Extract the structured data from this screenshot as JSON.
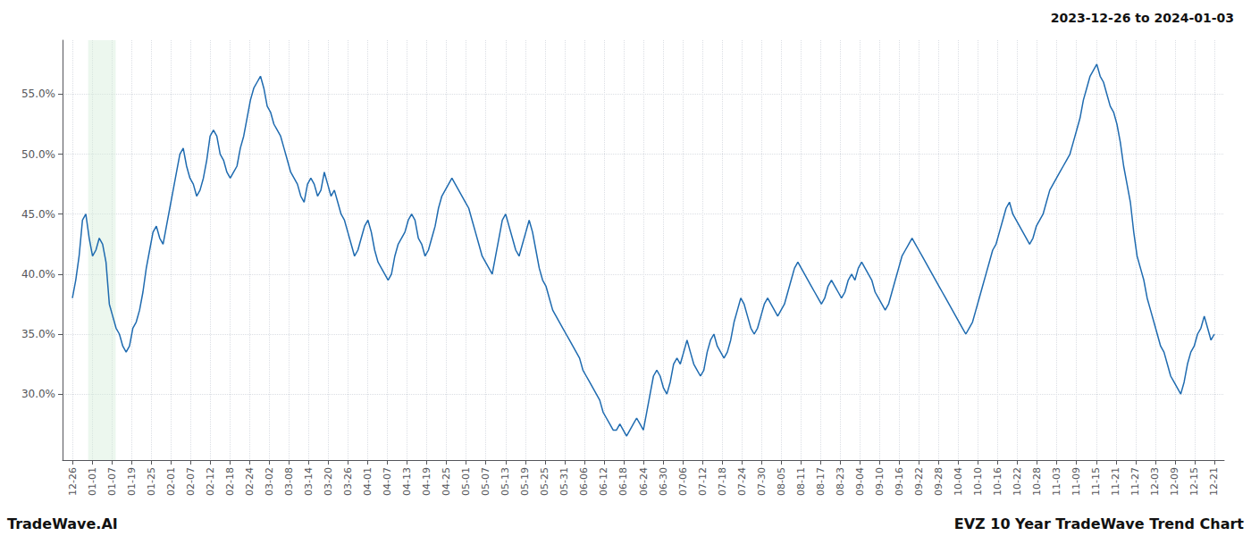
{
  "chart_data": {
    "type": "line",
    "title": "2023-12-26 to 2024-01-03",
    "annotations": [
      "TradeWave.AI",
      "EVZ 10 Year TradeWave Trend Chart"
    ],
    "color": "#1f6bb0",
    "grid": true,
    "shading": {
      "from": 0.8,
      "to": 2.2,
      "color": "#d4edda"
    },
    "xlim": [
      -0.5,
      58.5
    ],
    "xticks": [
      {
        "value": 0,
        "label": "12-26"
      },
      {
        "value": 1,
        "label": "01-01"
      },
      {
        "value": 2,
        "label": "01-07"
      },
      {
        "value": 3,
        "label": "01-19"
      },
      {
        "value": 4,
        "label": "01-25"
      },
      {
        "value": 5,
        "label": "02-01"
      },
      {
        "value": 6,
        "label": "02-07"
      },
      {
        "value": 7,
        "label": "02-12"
      },
      {
        "value": 8,
        "label": "02-18"
      },
      {
        "value": 9,
        "label": "02-24"
      },
      {
        "value": 10,
        "label": "03-02"
      },
      {
        "value": 11,
        "label": "03-08"
      },
      {
        "value": 12,
        "label": "03-14"
      },
      {
        "value": 13,
        "label": "03-20"
      },
      {
        "value": 14,
        "label": "03-26"
      },
      {
        "value": 15,
        "label": "04-01"
      },
      {
        "value": 16,
        "label": "04-07"
      },
      {
        "value": 17,
        "label": "04-13"
      },
      {
        "value": 18,
        "label": "04-19"
      },
      {
        "value": 19,
        "label": "04-25"
      },
      {
        "value": 20,
        "label": "05-01"
      },
      {
        "value": 21,
        "label": "05-07"
      },
      {
        "value": 22,
        "label": "05-13"
      },
      {
        "value": 23,
        "label": "05-19"
      },
      {
        "value": 24,
        "label": "05-25"
      },
      {
        "value": 25,
        "label": "05-31"
      },
      {
        "value": 26,
        "label": "06-06"
      },
      {
        "value": 27,
        "label": "06-12"
      },
      {
        "value": 28,
        "label": "06-18"
      },
      {
        "value": 29,
        "label": "06-24"
      },
      {
        "value": 30,
        "label": "06-30"
      },
      {
        "value": 31,
        "label": "07-06"
      },
      {
        "value": 32,
        "label": "07-12"
      },
      {
        "value": 33,
        "label": "07-18"
      },
      {
        "value": 34,
        "label": "07-24"
      },
      {
        "value": 35,
        "label": "07-30"
      },
      {
        "value": 36,
        "label": "08-05"
      },
      {
        "value": 37,
        "label": "08-11"
      },
      {
        "value": 38,
        "label": "08-17"
      },
      {
        "value": 39,
        "label": "08-23"
      },
      {
        "value": 40,
        "label": "09-04"
      },
      {
        "value": 41,
        "label": "09-10"
      },
      {
        "value": 42,
        "label": "09-16"
      },
      {
        "value": 43,
        "label": "09-22"
      },
      {
        "value": 44,
        "label": "09-28"
      },
      {
        "value": 45,
        "label": "10-04"
      },
      {
        "value": 46,
        "label": "10-10"
      },
      {
        "value": 47,
        "label": "10-16"
      },
      {
        "value": 48,
        "label": "10-22"
      },
      {
        "value": 49,
        "label": "10-28"
      },
      {
        "value": 50,
        "label": "11-03"
      },
      {
        "value": 51,
        "label": "11-09"
      },
      {
        "value": 52,
        "label": "11-15"
      },
      {
        "value": 53,
        "label": "11-21"
      },
      {
        "value": 54,
        "label": "11-27"
      },
      {
        "value": 55,
        "label": "12-03"
      },
      {
        "value": 56,
        "label": "12-09"
      },
      {
        "value": 57,
        "label": "12-15"
      },
      {
        "value": 58,
        "label": "12-21"
      }
    ],
    "ylim": [
      24.5,
      59.5
    ],
    "yticks": [
      {
        "value": 30.0,
        "label": "30.0%"
      },
      {
        "value": 35.0,
        "label": "35.0%"
      },
      {
        "value": 40.0,
        "label": "40.0%"
      },
      {
        "value": 45.0,
        "label": "45.0%"
      },
      {
        "value": 50.0,
        "label": "50.0%"
      },
      {
        "value": 55.0,
        "label": "55.0%"
      }
    ],
    "x": [
      0,
      0.1706,
      0.3412,
      0.5118,
      0.6824,
      0.8529,
      1.0235,
      1.1941,
      1.3647,
      1.5353,
      1.7059,
      1.8765,
      2.0471,
      2.2176,
      2.3882,
      2.5588,
      2.7294,
      2.9,
      3.0706,
      3.2412,
      3.4118,
      3.5824,
      3.7529,
      3.9235,
      4.0941,
      4.2647,
      4.4353,
      4.6059,
      4.7765,
      4.9471,
      5.1176,
      5.2882,
      5.4588,
      5.6294,
      5.8,
      5.9706,
      6.1412,
      6.3118,
      6.4824,
      6.6529,
      6.8235,
      6.9941,
      7.1647,
      7.3353,
      7.5059,
      7.6765,
      7.8471,
      8.0176,
      8.1882,
      8.3588,
      8.5294,
      8.7,
      8.8706,
      9.0412,
      9.2118,
      9.3824,
      9.5529,
      9.7235,
      9.8941,
      10.0647,
      10.2353,
      10.4059,
      10.5765,
      10.7471,
      10.9176,
      11.0882,
      11.2588,
      11.4294,
      11.6,
      11.7706,
      11.9412,
      12.1118,
      12.2824,
      12.4529,
      12.6235,
      12.7941,
      12.9647,
      13.1353,
      13.3059,
      13.4765,
      13.6471,
      13.8176,
      13.9882,
      14.1588,
      14.3294,
      14.5,
      14.6706,
      14.8412,
      15.0118,
      15.1824,
      15.3529,
      15.5235,
      15.6941,
      15.8647,
      16.0353,
      16.2059,
      16.3765,
      16.5471,
      16.7176,
      16.8882,
      17.0588,
      17.2294,
      17.4,
      17.5706,
      17.7412,
      17.9118,
      18.0824,
      18.2529,
      18.4235,
      18.5941,
      18.7647,
      18.9353,
      19.1059,
      19.2765,
      19.4471,
      19.6176,
      19.7882,
      19.9588,
      20.1294,
      20.3,
      20.4706,
      20.6412,
      20.8118,
      20.9824,
      21.1529,
      21.3235,
      21.4941,
      21.6647,
      21.8353,
      22.0059,
      22.1765,
      22.3471,
      22.5176,
      22.6882,
      22.8588,
      23.0294,
      23.2,
      23.3706,
      23.5412,
      23.7118,
      23.8824,
      24.0529,
      24.2235,
      24.3941,
      24.5647,
      24.7353,
      24.9059,
      25.0765,
      25.2471,
      25.4176,
      25.5882,
      25.7588,
      25.9294,
      26.1,
      26.2706,
      26.4412,
      26.6118,
      26.7824,
      26.9529,
      27.1235,
      27.2941,
      27.4647,
      27.6353,
      27.8059,
      27.9765,
      28.1471,
      28.3176,
      28.4882,
      28.6588,
      28.8294,
      29,
      29.1706,
      29.3412,
      29.5118,
      29.6824,
      29.8529,
      30.0235,
      30.1941,
      30.3647,
      30.5353,
      30.7059,
      30.8765,
      31.0471,
      31.2176,
      31.3882,
      31.5588,
      31.7294,
      31.9,
      32.0706,
      32.2412,
      32.4118,
      32.5824,
      32.7529,
      32.9235,
      33.0941,
      33.2647,
      33.4353,
      33.6059,
      33.7765,
      33.9471,
      34.1176,
      34.2882,
      34.4588,
      34.6294,
      34.8,
      34.9706,
      35.1412,
      35.3118,
      35.4824,
      35.6529,
      35.8235,
      35.9941,
      36.1647,
      36.3353,
      36.5059,
      36.6765,
      36.8471,
      37.0176,
      37.1882,
      37.3588,
      37.5294,
      37.7,
      37.8706,
      38.0412,
      38.2118,
      38.3824,
      38.5529,
      38.7235,
      38.8941,
      39.0647,
      39.2353,
      39.4059,
      39.5765,
      39.7471,
      39.9176,
      40.0882,
      40.2588,
      40.4294,
      40.6,
      40.7706,
      40.9412,
      41.1118,
      41.2824,
      41.4529,
      41.6235,
      41.7941,
      41.9647,
      42.1353,
      42.3059,
      42.4765,
      42.6471,
      42.8176,
      42.9882,
      43.1588,
      43.3294,
      43.5,
      43.6706,
      43.8412,
      44.0118,
      44.1824,
      44.3529,
      44.5235,
      44.6941,
      44.8647,
      45.0353,
      45.2059,
      45.3765,
      45.5471,
      45.7176,
      45.8882,
      46.0588,
      46.2294,
      46.4,
      46.5706,
      46.7412,
      46.9118,
      47.0824,
      47.2529,
      47.4235,
      47.5941,
      47.7647,
      47.9353,
      48.1059,
      48.2765,
      48.4471,
      48.6176,
      48.7882,
      48.9588,
      49.1294,
      49.3,
      49.4706,
      49.6412,
      49.8118,
      49.9824,
      50.1529,
      50.3235,
      50.4941,
      50.6647,
      50.8353,
      51.0059,
      51.1765,
      51.3471,
      51.5176,
      51.6882,
      51.8588,
      52.0294,
      52.2,
      52.3706,
      52.5412,
      52.7118,
      52.8824,
      53.0529,
      53.2235,
      53.3941,
      53.5647,
      53.7353,
      53.9059,
      54.0765,
      54.2471,
      54.4176,
      54.5882,
      54.7588,
      54.9294,
      55.1,
      55.2706,
      55.4412,
      55.6118,
      55.7824,
      55.9529,
      56.1235,
      56.2941,
      56.4647,
      56.6353,
      56.8059,
      56.9765,
      57.1471,
      57.3176,
      57.4882,
      57.6588,
      57.8294,
      58
    ],
    "values": [
      38.0,
      39.5,
      41.5,
      44.5,
      45.0,
      43.0,
      41.5,
      42.0,
      43.0,
      42.5,
      41.0,
      37.5,
      36.5,
      35.5,
      35.0,
      34.0,
      33.5,
      34.0,
      35.5,
      36.0,
      37.0,
      38.5,
      40.5,
      42.0,
      43.5,
      44.0,
      43.0,
      42.5,
      44.0,
      45.5,
      47.0,
      48.5,
      50.0,
      50.5,
      49.0,
      48.0,
      47.5,
      46.5,
      47.0,
      48.0,
      49.5,
      51.5,
      52.0,
      51.5,
      50.0,
      49.5,
      48.5,
      48.0,
      48.5,
      49.0,
      50.5,
      51.5,
      53.0,
      54.5,
      55.5,
      56.0,
      56.5,
      55.5,
      54.0,
      53.5,
      52.5,
      52.0,
      51.5,
      50.5,
      49.5,
      48.5,
      48.0,
      47.5,
      46.5,
      46.0,
      47.5,
      48.0,
      47.5,
      46.5,
      47.0,
      48.5,
      47.5,
      46.5,
      47.0,
      46.0,
      45.0,
      44.5,
      43.5,
      42.5,
      41.5,
      42.0,
      43.0,
      44.0,
      44.5,
      43.5,
      42.0,
      41.0,
      40.5,
      40.0,
      39.5,
      40.0,
      41.5,
      42.5,
      43.0,
      43.5,
      44.5,
      45.0,
      44.5,
      43.0,
      42.5,
      41.5,
      42.0,
      43.0,
      44.0,
      45.5,
      46.5,
      47.0,
      47.5,
      48.0,
      47.5,
      47.0,
      46.5,
      46.0,
      45.5,
      44.5,
      43.5,
      42.5,
      41.5,
      41.0,
      40.5,
      40.0,
      41.5,
      43.0,
      44.5,
      45.0,
      44.0,
      43.0,
      42.0,
      41.5,
      42.5,
      43.5,
      44.5,
      43.5,
      42.0,
      40.5,
      39.5,
      39.0,
      38.0,
      37.0,
      36.5,
      36.0,
      35.5,
      35.0,
      34.5,
      34.0,
      33.5,
      33.0,
      32.0,
      31.5,
      31.0,
      30.5,
      30.0,
      29.5,
      28.5,
      28.0,
      27.5,
      27.0,
      27.0,
      27.5,
      27.0,
      26.5,
      27.0,
      27.5,
      28.0,
      27.5,
      27.0,
      28.5,
      30.0,
      31.5,
      32.0,
      31.5,
      30.5,
      30.0,
      31.0,
      32.5,
      33.0,
      32.5,
      33.5,
      34.5,
      33.5,
      32.5,
      32.0,
      31.5,
      32.0,
      33.5,
      34.5,
      35.0,
      34.0,
      33.5,
      33.0,
      33.5,
      34.5,
      36.0,
      37.0,
      38.0,
      37.5,
      36.5,
      35.5,
      35.0,
      35.5,
      36.5,
      37.5,
      38.0,
      37.5,
      37.0,
      36.5,
      37.0,
      37.5,
      38.5,
      39.5,
      40.5,
      41.0,
      40.5,
      40.0,
      39.5,
      39.0,
      38.5,
      38.0,
      37.5,
      38.0,
      39.0,
      39.5,
      39.0,
      38.5,
      38.0,
      38.5,
      39.5,
      40.0,
      39.5,
      40.5,
      41.0,
      40.5,
      40.0,
      39.5,
      38.5,
      38.0,
      37.5,
      37.0,
      37.5,
      38.5,
      39.5,
      40.5,
      41.5,
      42.0,
      42.5,
      43.0,
      42.5,
      42.0,
      41.5,
      41.0,
      40.5,
      40.0,
      39.5,
      39.0,
      38.5,
      38.0,
      37.5,
      37.0,
      36.5,
      36.0,
      35.5,
      35.0,
      35.5,
      36.0,
      37.0,
      38.0,
      39.0,
      40.0,
      41.0,
      42.0,
      42.5,
      43.5,
      44.5,
      45.5,
      46.0,
      45.0,
      44.5,
      44.0,
      43.5,
      43.0,
      42.5,
      43.0,
      44.0,
      44.5,
      45.0,
      46.0,
      47.0,
      47.5,
      48.0,
      48.5,
      49.0,
      49.5,
      50.0,
      51.0,
      52.0,
      53.0,
      54.5,
      55.5,
      56.5,
      57.0,
      57.5,
      56.5,
      56.0,
      55.0,
      54.0,
      53.5,
      52.5,
      51.0,
      49.0,
      47.5,
      46.0,
      43.5,
      41.5,
      40.5,
      39.5,
      38.0,
      37.0,
      36.0,
      35.0,
      34.0,
      33.5,
      32.5,
      31.5,
      31.0,
      30.5,
      30.0,
      31.0,
      32.5,
      33.5,
      34.0,
      35.0,
      35.5,
      36.5,
      35.5,
      34.5,
      35.0
    ]
  }
}
